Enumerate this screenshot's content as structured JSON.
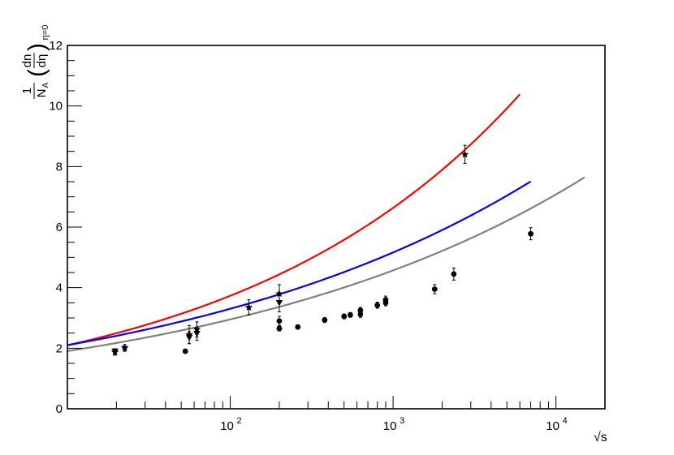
{
  "chart_data": {
    "type": "scatter",
    "xscale": "log",
    "xlim": [
      10,
      20000
    ],
    "ylim": [
      0,
      12
    ],
    "xlabel": "√s",
    "ylabel": {
      "numerator": "1",
      "denominator": "N",
      "denominator_sub": "A",
      "paren_num": "dn",
      "paren_den": "dη",
      "subscript": "η=0"
    },
    "y_ticks": [
      "0",
      "2",
      "4",
      "6",
      "8",
      "10",
      "12"
    ],
    "x_ticks": [
      {
        "base": "10",
        "exp": "2",
        "value": 100
      },
      {
        "base": "10",
        "exp": "3",
        "value": 1000
      },
      {
        "base": "10",
        "exp": "4",
        "value": 10000
      }
    ],
    "series": [
      {
        "marker": "circle",
        "color": "#000000",
        "x": [
          53,
          200,
          200,
          260,
          380,
          500,
          546,
          630,
          630,
          800,
          900,
          900,
          1800,
          2360,
          7000
        ],
        "y": [
          1.9,
          2.9,
          2.65,
          2.7,
          2.93,
          3.05,
          3.1,
          3.12,
          3.25,
          3.42,
          3.5,
          3.6,
          3.95,
          4.45,
          5.78
        ],
        "err": [
          0.05,
          0.15,
          0.08,
          0.05,
          0.08,
          0.08,
          0.08,
          0.1,
          0.1,
          0.1,
          0.1,
          0.12,
          0.15,
          0.2,
          0.2
        ]
      },
      {
        "marker": "star",
        "color": "#000000",
        "x": [
          19.6,
          22.5,
          56,
          62.4,
          130,
          200,
          2760
        ],
        "y": [
          1.87,
          2.02,
          2.45,
          2.62,
          3.35,
          3.8,
          8.4
        ],
        "err": [
          0.1,
          0.1,
          0.3,
          0.25,
          0.25,
          0.3,
          0.3
        ]
      },
      {
        "marker": "triangle-down",
        "color": "#000000",
        "x": [
          19.6,
          22.5,
          56,
          62.4,
          200
        ],
        "y": [
          1.9,
          1.98,
          2.35,
          2.48,
          3.5
        ],
        "err": [
          0.08,
          0.08,
          0.2,
          0.22,
          0.3
        ]
      }
    ],
    "fits": [
      {
        "color": "#ff0000",
        "a": 1.18,
        "b": 0.5,
        "c": 0.0,
        "xmin": 10,
        "xmax": 6000
      },
      {
        "color": "#0000ff",
        "a": 1.33,
        "b": 0.33,
        "c": 0.035,
        "xmin": 10,
        "xmax": 7000
      },
      {
        "color": "#808080",
        "a": 1.23,
        "b": 0.38,
        "c": 0.0,
        "xmin": 10,
        "xmax": 15000
      }
    ]
  }
}
